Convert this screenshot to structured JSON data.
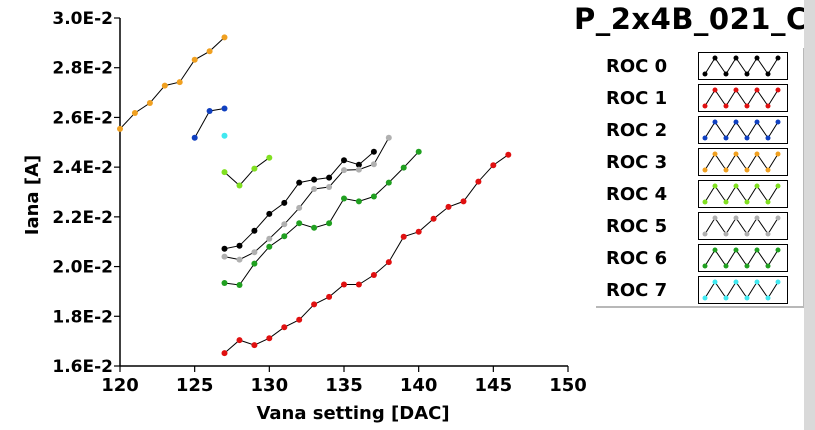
{
  "chart_data": {
    "type": "line",
    "title": "P_2x4B_021_C",
    "xlabel": "Vana setting [DAC]",
    "ylabel": "Iana [A]",
    "xlim": [
      120,
      150
    ],
    "ylim": [
      0.016,
      0.03
    ],
    "xticks": [
      120,
      125,
      130,
      135,
      140,
      145,
      150
    ],
    "yticks": [
      {
        "value": 0.016,
        "label": "1.6E-2"
      },
      {
        "value": 0.018,
        "label": "1.8E-2"
      },
      {
        "value": 0.02,
        "label": "2.0E-2"
      },
      {
        "value": 0.022,
        "label": "2.2E-2"
      },
      {
        "value": 0.024,
        "label": "2.4E-2"
      },
      {
        "value": 0.026,
        "label": "2.6E-2"
      },
      {
        "value": 0.028,
        "label": "2.8E-2"
      },
      {
        "value": 0.03,
        "label": "3.0E-2"
      }
    ],
    "grid": false,
    "legend_position": "right",
    "series": [
      {
        "name": "ROC 0",
        "color": "#000000",
        "x": [
          127,
          128,
          129,
          130,
          131,
          132,
          133,
          134,
          135,
          136,
          137
        ],
        "y": [
          0.02072,
          0.02084,
          0.02144,
          0.02212,
          0.02256,
          0.02338,
          0.0235,
          0.02358,
          0.02428,
          0.0241,
          0.02462
        ]
      },
      {
        "name": "ROC 1",
        "color": "#e01010",
        "x": [
          127,
          128,
          129,
          130,
          131,
          132,
          133,
          134,
          135,
          136,
          137,
          138,
          139,
          140,
          141,
          142,
          143,
          144,
          145,
          146
        ],
        "y": [
          0.01652,
          0.01704,
          0.01684,
          0.01712,
          0.01756,
          0.01786,
          0.01848,
          0.01878,
          0.01928,
          0.01928,
          0.01966,
          0.02018,
          0.0212,
          0.0214,
          0.02192,
          0.0224,
          0.02262,
          0.02342,
          0.02408,
          0.0245
        ]
      },
      {
        "name": "ROC 2",
        "color": "#1040c0",
        "x": [
          125,
          126,
          127
        ],
        "y": [
          0.02518,
          0.02626,
          0.02636
        ]
      },
      {
        "name": "ROC 3",
        "color": "#f0a020",
        "x": [
          120,
          121,
          122,
          123,
          124,
          125,
          126,
          127
        ],
        "y": [
          0.02554,
          0.02618,
          0.02658,
          0.02728,
          0.02742,
          0.02832,
          0.02866,
          0.02922
        ]
      },
      {
        "name": "ROC 4",
        "color": "#80e020",
        "x": [
          127,
          128,
          129,
          130
        ],
        "y": [
          0.0238,
          0.02326,
          0.02394,
          0.02438
        ]
      },
      {
        "name": "ROC 5",
        "color": "#b0b0b0",
        "x": [
          127,
          128,
          129,
          130,
          131,
          132,
          133,
          134,
          135,
          136,
          137,
          138
        ],
        "y": [
          0.0204,
          0.02028,
          0.02058,
          0.02112,
          0.0217,
          0.02236,
          0.02312,
          0.0232,
          0.02388,
          0.0239,
          0.02412,
          0.02518
        ]
      },
      {
        "name": "ROC 6",
        "color": "#20a020",
        "x": [
          127,
          128,
          129,
          130,
          131,
          132,
          133,
          134,
          135,
          136,
          137,
          138,
          139,
          140
        ],
        "y": [
          0.01934,
          0.01926,
          0.02012,
          0.0208,
          0.02122,
          0.02174,
          0.02156,
          0.02174,
          0.02274,
          0.02262,
          0.02282,
          0.02338,
          0.02398,
          0.02462
        ]
      },
      {
        "name": "ROC 7",
        "color": "#40e8f0",
        "x": [
          127
        ],
        "y": [
          0.02526
        ]
      }
    ]
  }
}
